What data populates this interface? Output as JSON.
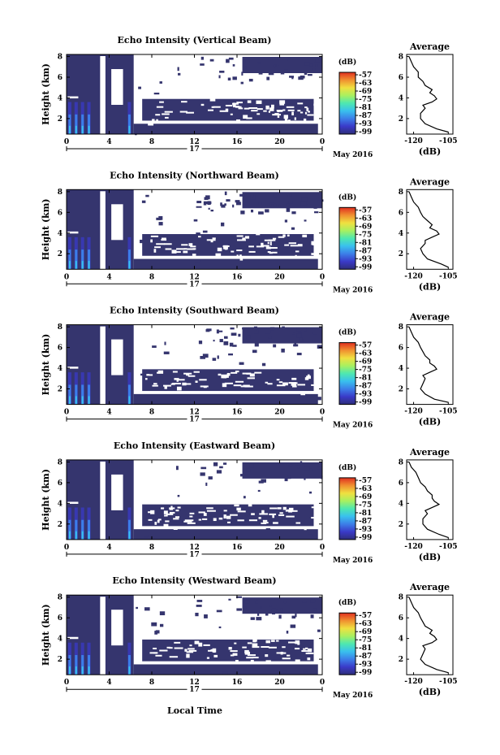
{
  "figure": {
    "x_axis_label": "Local Time",
    "date_label": "May 2016",
    "date_day": "17"
  },
  "colors": {
    "white_blank": "#ffffff",
    "colorbar_gradient": [
      "#2e2e7a",
      "#3a3ac8",
      "#3c7ee8",
      "#39c0ee",
      "#4ee8b0",
      "#a8f060",
      "#f0e040",
      "#f09030",
      "#e03020"
    ],
    "profile_line": "#000000"
  },
  "chart_data": [
    {
      "type": "heatmap",
      "title": "Echo Intensity (Vertical Beam)",
      "ylabel": "Height (km)",
      "x_ticks": [
        "0",
        "4",
        "8",
        "12",
        "16",
        "20",
        "0"
      ],
      "y_ticks": [
        "2",
        "4",
        "6",
        "8"
      ],
      "xlim": [
        0,
        24
      ],
      "ylim": [
        0.5,
        8.2
      ],
      "colorbar": {
        "unit": "(dB)",
        "ticks": [
          "-57",
          "-63",
          "-69",
          "-75",
          "-81",
          "-87",
          "-93",
          "-99"
        ]
      },
      "profile": {
        "title": "Average",
        "xlabel": "(dB)",
        "x_ticks": [
          "-120",
          "-105"
        ],
        "xlim": [
          -123,
          -103
        ],
        "y_ticks": [
          "2",
          "4",
          "6",
          "8"
        ],
        "ylim": [
          0.5,
          8.2
        ],
        "height_km": [
          0.7,
          1.0,
          1.5,
          2.0,
          2.5,
          3.0,
          3.3,
          3.6,
          3.9,
          4.2,
          4.5,
          4.8,
          5.2,
          5.6,
          6.0,
          6.5,
          7.0,
          7.5,
          8.0
        ],
        "avg_db": [
          -105,
          -110,
          -115,
          -117,
          -117,
          -115,
          -116,
          -112,
          -110,
          -111,
          -113,
          -112,
          -115,
          -116,
          -118,
          -118,
          -120,
          -121,
          -122
        ]
      }
    },
    {
      "type": "heatmap",
      "title": "Echo Intensity (Northward Beam)",
      "ylabel": "Height (km)",
      "x_ticks": [
        "0",
        "4",
        "8",
        "12",
        "16",
        "20",
        "0"
      ],
      "y_ticks": [
        "2",
        "4",
        "6",
        "8"
      ],
      "xlim": [
        0,
        24
      ],
      "ylim": [
        0.5,
        8.2
      ],
      "colorbar": {
        "unit": "(dB)",
        "ticks": [
          "-57",
          "-63",
          "-69",
          "-75",
          "-81",
          "-87",
          "-93",
          "-99"
        ]
      },
      "profile": {
        "title": "Average",
        "xlabel": "(dB)",
        "x_ticks": [
          "-120",
          "-105"
        ],
        "xlim": [
          -123,
          -103
        ],
        "y_ticks": [
          "2",
          "4",
          "6",
          "8"
        ],
        "ylim": [
          0.5,
          8.2
        ],
        "height_km": [
          0.7,
          1.0,
          1.5,
          2.0,
          2.5,
          3.0,
          3.3,
          3.6,
          3.9,
          4.2,
          4.5,
          4.8,
          5.2,
          5.6,
          6.0,
          6.5,
          7.0,
          7.5,
          8.0
        ],
        "avg_db": [
          -105,
          -108,
          -114,
          -116,
          -117,
          -115,
          -115,
          -112,
          -109,
          -110,
          -113,
          -112,
          -114,
          -116,
          -117,
          -118,
          -120,
          -121,
          -122
        ]
      }
    },
    {
      "type": "heatmap",
      "title": "Echo Intensity (Southward Beam)",
      "ylabel": "Height (km)",
      "x_ticks": [
        "0",
        "4",
        "8",
        "12",
        "16",
        "20",
        "0"
      ],
      "y_ticks": [
        "2",
        "4",
        "6",
        "8"
      ],
      "xlim": [
        0,
        24
      ],
      "ylim": [
        0.5,
        8.2
      ],
      "colorbar": {
        "unit": "(dB)",
        "ticks": [
          "-57",
          "-63",
          "-69",
          "-75",
          "-81",
          "-87",
          "-93",
          "-99"
        ]
      },
      "profile": {
        "title": "Average",
        "xlabel": "(dB)",
        "x_ticks": [
          "-120",
          "-105"
        ],
        "xlim": [
          -123,
          -103
        ],
        "y_ticks": [
          "2",
          "4",
          "6",
          "8"
        ],
        "ylim": [
          0.5,
          8.2
        ],
        "height_km": [
          0.7,
          1.0,
          1.5,
          2.0,
          2.5,
          3.0,
          3.3,
          3.6,
          3.9,
          4.2,
          4.5,
          4.8,
          5.2,
          5.6,
          6.0,
          6.5,
          7.0,
          7.5,
          8.0
        ],
        "avg_db": [
          -105,
          -111,
          -115,
          -117,
          -116,
          -115,
          -116,
          -113,
          -110,
          -111,
          -113,
          -113,
          -115,
          -116,
          -117,
          -118,
          -120,
          -121,
          -122
        ]
      }
    },
    {
      "type": "heatmap",
      "title": "Echo Intensity (Eastward Beam)",
      "ylabel": "Height (km)",
      "x_ticks": [
        "0",
        "4",
        "8",
        "12",
        "16",
        "20",
        "0"
      ],
      "y_ticks": [
        "2",
        "4",
        "6",
        "8"
      ],
      "xlim": [
        0,
        24
      ],
      "ylim": [
        0.5,
        8.2
      ],
      "colorbar": {
        "unit": "(dB)",
        "ticks": [
          "-57",
          "-63",
          "-69",
          "-75",
          "-81",
          "-87",
          "-93",
          "-99"
        ]
      },
      "profile": {
        "title": "Average",
        "xlabel": "(dB)",
        "x_ticks": [
          "-120",
          "-105"
        ],
        "xlim": [
          -123,
          -103
        ],
        "y_ticks": [
          "2",
          "4",
          "6",
          "8"
        ],
        "ylim": [
          0.5,
          8.2
        ],
        "height_km": [
          0.7,
          1.0,
          1.5,
          2.0,
          2.5,
          3.0,
          3.3,
          3.6,
          3.9,
          4.2,
          4.5,
          4.8,
          5.2,
          5.6,
          6.0,
          6.5,
          7.0,
          7.5,
          8.0
        ],
        "avg_db": [
          -105,
          -109,
          -114,
          -116,
          -116,
          -114,
          -115,
          -112,
          -109,
          -111,
          -112,
          -112,
          -114,
          -115,
          -117,
          -118,
          -119,
          -121,
          -122
        ]
      }
    },
    {
      "type": "heatmap",
      "title": "Echo Intensity (Westward Beam)",
      "ylabel": "Height (km)",
      "x_ticks": [
        "0",
        "4",
        "8",
        "12",
        "16",
        "20",
        "0"
      ],
      "y_ticks": [
        "2",
        "4",
        "6",
        "8"
      ],
      "xlim": [
        0,
        24
      ],
      "ylim": [
        0.5,
        8.2
      ],
      "colorbar": {
        "unit": "(dB)",
        "ticks": [
          "-57",
          "-63",
          "-69",
          "-75",
          "-81",
          "-87",
          "-93",
          "-99"
        ]
      },
      "profile": {
        "title": "Average",
        "xlabel": "(dB)",
        "x_ticks": [
          "-120",
          "-105"
        ],
        "xlim": [
          -123,
          -103
        ],
        "y_ticks": [
          "2",
          "4",
          "6",
          "8"
        ],
        "ylim": [
          0.5,
          8.2
        ],
        "height_km": [
          0.7,
          1.0,
          1.5,
          2.0,
          2.5,
          3.0,
          3.3,
          3.6,
          3.9,
          4.2,
          4.5,
          4.8,
          5.2,
          5.6,
          6.0,
          6.5,
          7.0,
          7.5,
          8.0
        ],
        "avg_db": [
          -105,
          -110,
          -115,
          -117,
          -116,
          -115,
          -116,
          -112,
          -110,
          -111,
          -113,
          -112,
          -115,
          -116,
          -117,
          -118,
          -120,
          -121,
          -122
        ]
      }
    }
  ]
}
